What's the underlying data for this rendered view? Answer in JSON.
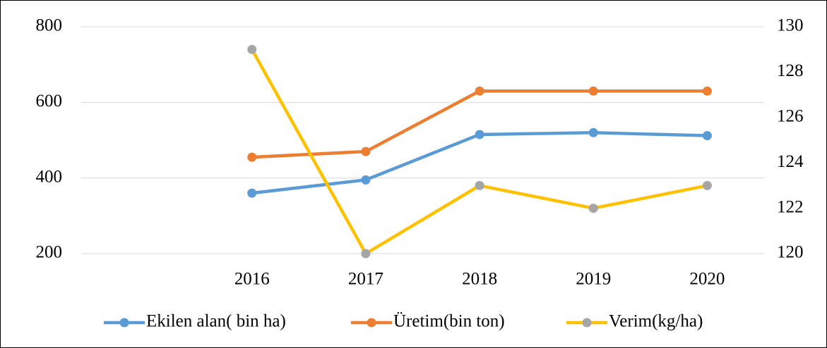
{
  "chart_data": {
    "type": "line",
    "categories": [
      null,
      "2016",
      "2017",
      "2018",
      "2019",
      "2020"
    ],
    "series": [
      {
        "name": "Ekilen alan( bin ha)",
        "color": "#5b9bd5",
        "marker_color": "#5b9bd5",
        "values": [
          null,
          360,
          395,
          515,
          520,
          512
        ]
      },
      {
        "name": "Üretim(bin ton)",
        "color": "#ed7d31",
        "marker_color": "#ed7d31",
        "values": [
          null,
          455,
          470,
          630,
          630,
          630
        ]
      },
      {
        "name": "Verim(kg/ha)",
        "color": "#ffc000",
        "marker_color": "#a5a5a5",
        "axis": "y2",
        "values": [
          null,
          129,
          120,
          123,
          122,
          123
        ]
      }
    ],
    "ylim": [
      200,
      800
    ],
    "yticks": [
      200,
      400,
      600,
      800
    ],
    "y2lim": [
      120,
      130
    ],
    "y2ticks": [
      120,
      122,
      124,
      126,
      128,
      130
    ],
    "grid": true,
    "legend": "bottom"
  }
}
